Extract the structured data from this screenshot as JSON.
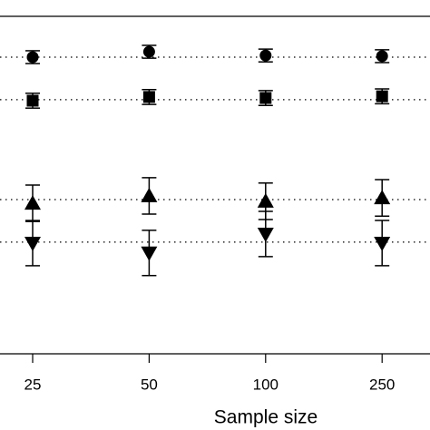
{
  "chart_data": {
    "type": "dot",
    "x_label": "Sample size",
    "categories": [
      "25",
      "50",
      "100",
      "250"
    ],
    "ylim": [
      0,
      100
    ],
    "reference_lines": [
      87.9,
      75.3,
      45.7,
      33.1
    ],
    "series": [
      {
        "marker": "circle",
        "color": "#000000",
        "values": [
          87.9,
          89.5,
          88.4,
          88.2
        ],
        "errors": [
          1.9,
          1.9,
          1.9,
          1.9
        ]
      },
      {
        "marker": "square",
        "color": "#000000",
        "values": [
          75.0,
          76.1,
          75.8,
          76.3
        ],
        "errors": [
          2.2,
          2.2,
          2.2,
          2.2
        ]
      },
      {
        "marker": "triangle-up",
        "color": "#000000",
        "values": [
          44.6,
          46.8,
          45.2,
          46.2
        ],
        "errors": [
          5.4,
          5.4,
          5.4,
          5.4
        ]
      },
      {
        "marker": "triangle-down",
        "color": "#000000",
        "values": [
          32.8,
          29.9,
          35.5,
          32.8
        ],
        "errors": [
          6.7,
          6.7,
          6.7,
          6.7
        ]
      }
    ]
  }
}
